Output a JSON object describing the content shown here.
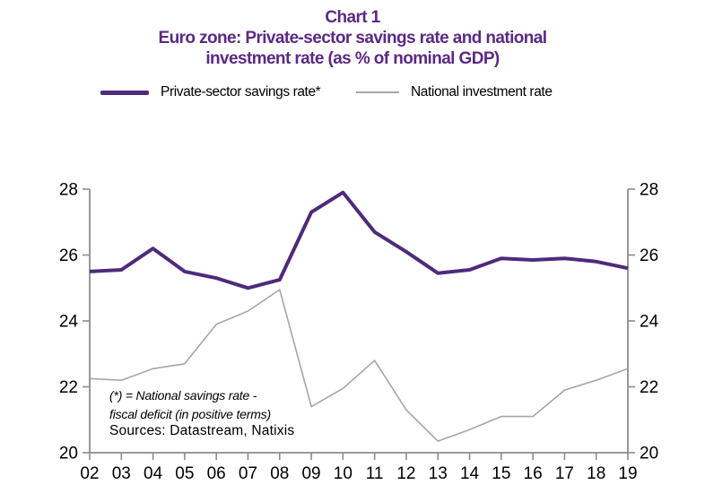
{
  "title": {
    "line1": "Chart 1",
    "line2": "Euro zone: Private-sector savings rate and national",
    "line3": "investment rate (as % of nominal GDP)"
  },
  "legend": [
    {
      "label": "Private-sector savings rate*",
      "color": "#4E2A7B",
      "thickness": 5
    },
    {
      "label": "National investment rate",
      "color": "#A6A6A6",
      "thickness": 2
    }
  ],
  "footnote": {
    "line1": "(*) = National savings rate -",
    "line2": "fiscal deficit (in positive terms)",
    "sources": "Sources:  Datastream,  Natixis"
  },
  "colors": {
    "title": "#5B2A84",
    "axis": "#8C8C8C",
    "tick_text": "#000000"
  },
  "chart_data": {
    "type": "line",
    "categories": [
      "02",
      "03",
      "04",
      "05",
      "06",
      "07",
      "08",
      "09",
      "10",
      "11",
      "12",
      "13",
      "14",
      "15",
      "16",
      "17",
      "18",
      "19"
    ],
    "series": [
      {
        "name": "Private-sector savings rate*",
        "color": "#4E2A7B",
        "width": 4,
        "values": [
          25.5,
          25.55,
          26.2,
          25.5,
          25.3,
          25.0,
          25.25,
          27.3,
          27.9,
          26.7,
          26.1,
          25.45,
          25.55,
          25.9,
          25.85,
          25.9,
          25.8,
          25.6
        ]
      },
      {
        "name": "National investment rate",
        "color": "#A6A6A6",
        "width": 1.6,
        "values": [
          22.25,
          22.2,
          22.55,
          22.7,
          23.9,
          24.3,
          24.95,
          21.4,
          21.95,
          22.8,
          21.3,
          20.35,
          20.7,
          21.1,
          21.1,
          21.9,
          22.2,
          22.55
        ]
      }
    ],
    "ylim": [
      20,
      28
    ],
    "yticks": [
      20,
      22,
      24,
      26,
      28
    ],
    "y_axis_sides": "both",
    "grid": false,
    "legend_position": "top",
    "xlabel": "",
    "ylabel": ""
  }
}
